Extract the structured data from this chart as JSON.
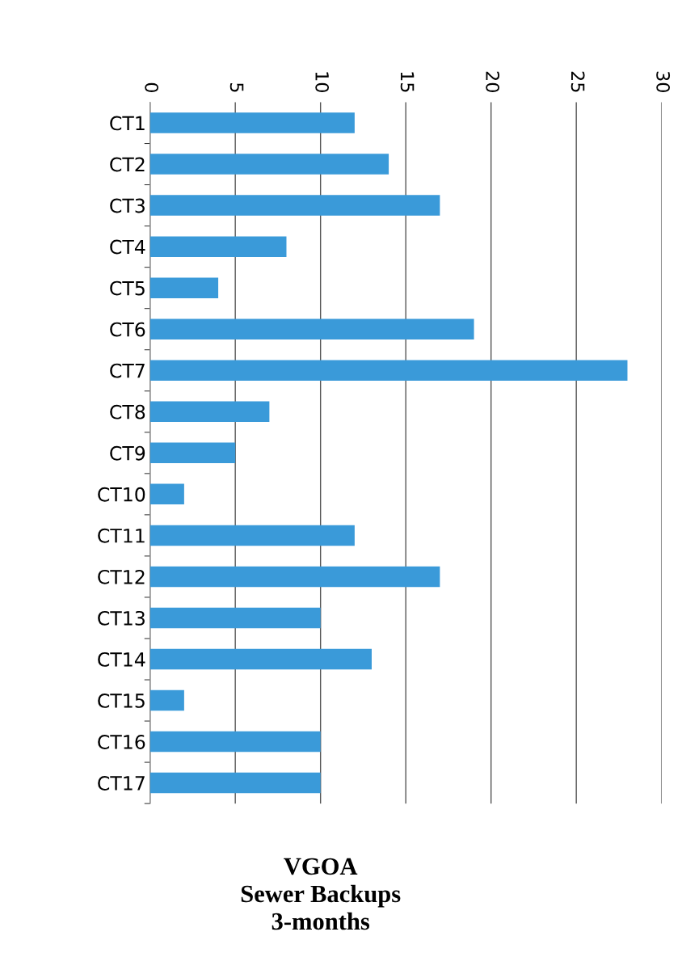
{
  "chart_data": {
    "type": "bar",
    "orientation": "horizontal",
    "title": "VGOA\nSewer Backups\n3-months",
    "categories": [
      "CT1",
      "CT2",
      "CT3",
      "CT4",
      "CT5",
      "CT6",
      "CT7",
      "CT8",
      "CT9",
      "CT10",
      "CT11",
      "CT12",
      "CT13",
      "CT14",
      "CT15",
      "CT16",
      "CT17"
    ],
    "values": [
      12,
      14,
      17,
      8,
      4,
      19,
      28,
      7,
      5,
      2,
      12,
      17,
      10,
      13,
      2,
      10,
      10
    ],
    "color": "#3a9ad9",
    "xlim": [
      0,
      30
    ],
    "xticks": [
      0,
      5,
      10,
      15,
      20,
      25,
      30
    ],
    "grid": "x"
  }
}
